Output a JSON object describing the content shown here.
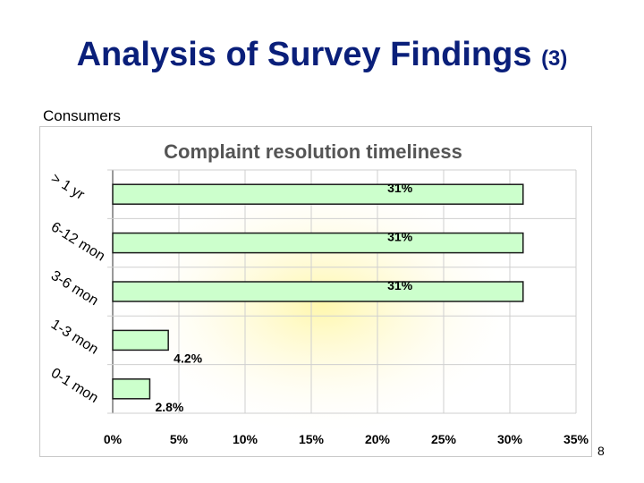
{
  "slide": {
    "title": "Analysis of Survey Findings",
    "title_suffix": "(3)",
    "subtitle": "Consumers",
    "page_number": "8"
  },
  "chart_data": {
    "type": "bar",
    "orientation": "horizontal",
    "title": "Complaint resolution timeliness",
    "categories": [
      "> 1 yr",
      "6-12 mon",
      "3-6 mon",
      "1-3 mon",
      "0-1 mon"
    ],
    "values": [
      31,
      31,
      31,
      4.2,
      2.8
    ],
    "data_labels": [
      "31%",
      "31%",
      "31%",
      "4.2%",
      "2.8%"
    ],
    "x_ticks": [
      "0%",
      "5%",
      "10%",
      "15%",
      "20%",
      "25%",
      "30%",
      "35%"
    ],
    "xlim": [
      0,
      35
    ],
    "grid": true,
    "colors": {
      "bar_fill": "#ccffcc",
      "bar_stroke": "#1a1a1a",
      "title": "#555555",
      "grid": "#cfcfcf",
      "glow": "#fff7a8"
    }
  }
}
